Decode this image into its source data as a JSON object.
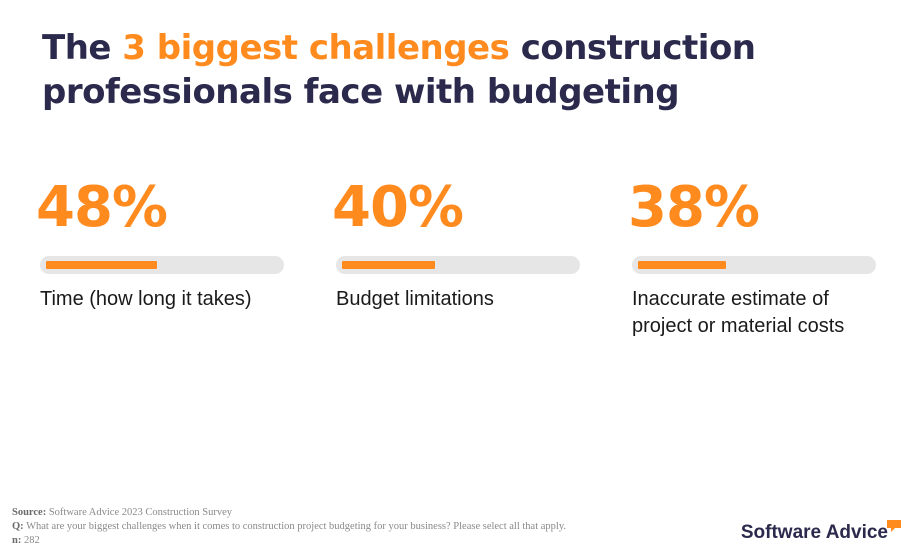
{
  "header": {
    "title_pre": "The ",
    "title_accent": "3 biggest challenges",
    "title_post": " construction professionals face with budgeting"
  },
  "colors": {
    "accent": "#ff8a1e",
    "navy": "#2b2a4c",
    "track": "#e6e6e6"
  },
  "chart_data": {
    "type": "bar",
    "title": "The 3 biggest challenges construction professionals face with budgeting",
    "categories": [
      "Time (how long it takes)",
      "Budget limitations",
      "Inaccurate estimate of project or material costs"
    ],
    "values": [
      48,
      40,
      38
    ],
    "value_labels": [
      "48%",
      "40%",
      "38%"
    ],
    "ylim": [
      0,
      100
    ],
    "unit": "%"
  },
  "footer": {
    "source_label": "Source:",
    "source_text": " Software Advice 2023 Construction Survey",
    "question_label": "Q:",
    "question_text": " What are your biggest challenges when it comes to construction project budgeting for your business? Please select all that apply.",
    "n_label": "n:",
    "n_text": " 282"
  },
  "brand": {
    "name": "Software Advice",
    "icon": "speech-bubble-icon"
  }
}
